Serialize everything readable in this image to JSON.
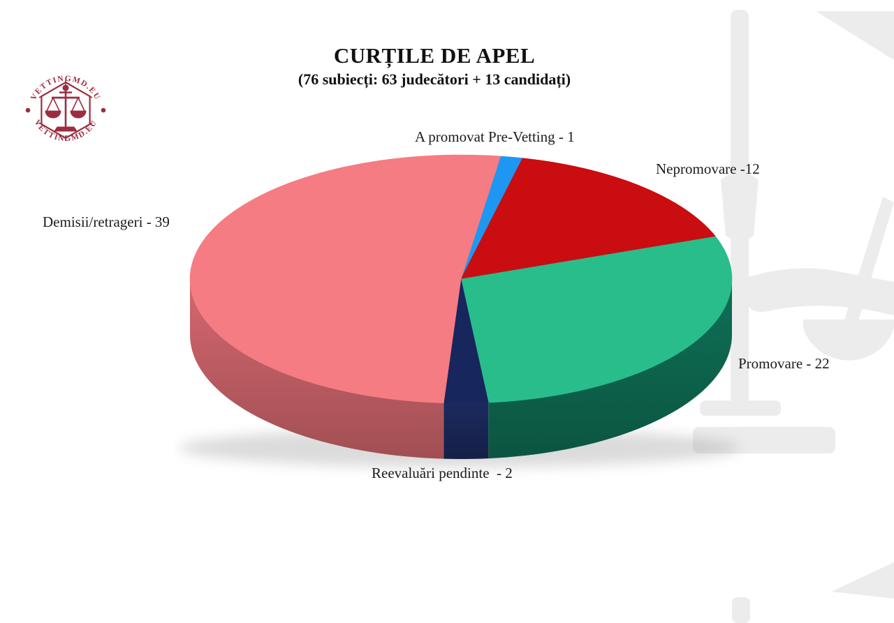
{
  "page": {
    "background": "#ffffff"
  },
  "logo": {
    "icon": "scales-of-justice-seal",
    "text_top": "VETTINGMD.EU",
    "text_bottom": "VETTINGMD.EU",
    "color": "#9C2D40"
  },
  "watermark": {
    "icon": "scales-of-justice",
    "color": "#ECECEC"
  },
  "chart_data": {
    "type": "pie",
    "style": "3d-pie",
    "title": "CURȚILE DE APEL",
    "subtitle": "(76 subiecți: 63 judecători + 13 candidați)",
    "total_subjects": 76,
    "judges": 63,
    "candidates": 13,
    "start_angle_deg": -81.6,
    "legend_position": "around-slices",
    "slices": [
      {
        "label": "A promovat Pre-Vetting",
        "value": 1,
        "display": "A promovat Pre-Vetting - 1",
        "color": "#1E97F2"
      },
      {
        "label": "Nepromovare",
        "value": 12,
        "display": "Nepromovare -12",
        "color": "#C90D11"
      },
      {
        "label": "Promovare",
        "value": 22,
        "display": "Promovare - 22",
        "color": "#29BD8C",
        "side_color": "#0F7056"
      },
      {
        "label": "Reevaluări pendinte",
        "value": 2,
        "display": "Reevaluări pendinte  - 2",
        "color": "#17265C",
        "side_color": "#1B2A5E"
      },
      {
        "label": "Demisii/retrageri",
        "value": 39,
        "display": "Demisii/retrageri - 39",
        "color": "#F57C82",
        "side_color": "#D4686F"
      }
    ]
  }
}
